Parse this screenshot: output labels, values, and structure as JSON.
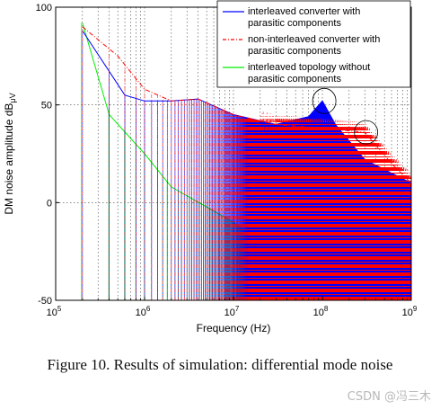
{
  "chart_data": {
    "type": "line",
    "xscale": "log",
    "xlim": [
      100000,
      1000000000
    ],
    "ylim": [
      -50,
      100
    ],
    "xlabel": "Frequency (Hz)",
    "ylabel": "DM noise amplitude dB",
    "ylabel_unit": "μV",
    "x_ticks": [
      {
        "value": 100000,
        "base": "10",
        "exp": "5"
      },
      {
        "value": 1000000,
        "base": "10",
        "exp": "6"
      },
      {
        "value": 10000000,
        "base": "10",
        "exp": "7"
      },
      {
        "value": 100000000,
        "base": "10",
        "exp": "8"
      },
      {
        "value": 1000000000,
        "base": "10",
        "exp": "9"
      }
    ],
    "y_ticks": [
      -50,
      0,
      50,
      100
    ],
    "grid": true,
    "legend_position": "top-right",
    "series": [
      {
        "name_line1": "interleaved converter with",
        "name_line2": "parasitic components",
        "color": "#0000ff",
        "style": "solid",
        "envelope": [
          [
            200000,
            88
          ],
          [
            600000,
            55
          ],
          [
            1000000,
            52
          ],
          [
            2000000,
            52
          ],
          [
            4000000,
            53
          ],
          [
            10000000,
            45
          ],
          [
            30000000,
            40
          ],
          [
            70000000,
            44
          ],
          [
            100000000,
            52
          ],
          [
            140000000,
            40
          ],
          [
            300000000,
            22
          ],
          [
            1000000000,
            10
          ]
        ]
      },
      {
        "name_line1": "non-interleaved converter with",
        "name_line2": "parasitic components",
        "color": "#ff0000",
        "style": "dashdot",
        "envelope": [
          [
            200000,
            90
          ],
          [
            500000,
            75
          ],
          [
            1000000,
            58
          ],
          [
            2000000,
            52
          ],
          [
            4000000,
            53
          ],
          [
            10000000,
            45
          ],
          [
            30000000,
            40
          ],
          [
            100000000,
            38
          ],
          [
            300000000,
            36
          ],
          [
            600000000,
            20
          ],
          [
            1000000000,
            10
          ]
        ]
      },
      {
        "name_line1": "interleaved topology without",
        "name_line2": "parasitic components",
        "color": "#00ee00",
        "style": "solid",
        "envelope": [
          [
            200000,
            92
          ],
          [
            400000,
            45
          ],
          [
            1000000,
            25
          ],
          [
            2000000,
            8
          ],
          [
            10000000,
            -10
          ],
          [
            20000000,
            -20
          ],
          [
            30000000,
            -50
          ],
          [
            1000000000,
            -50
          ]
        ]
      }
    ],
    "annotations": [
      "circle near 1e8 Hz, ~52 dB",
      "circle near 3e8 Hz, ~36 dB"
    ]
  },
  "caption": "Figure 10.  Results of simulation: differential mode noise",
  "watermark": "CSDN @冯三木"
}
